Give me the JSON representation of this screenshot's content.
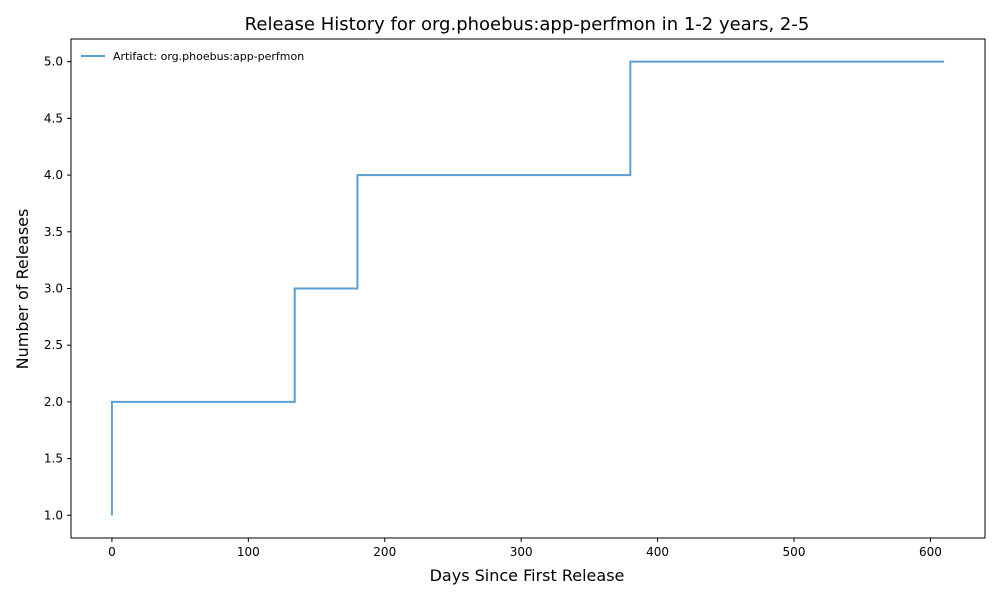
{
  "chart_data": {
    "type": "line",
    "step": "post",
    "title": "Release History for org.phoebus:app-perfmon in 1-2 years, 2-5",
    "xlabel": "Days Since First Release",
    "ylabel": "Number of Releases",
    "xlim": [
      -30,
      640
    ],
    "ylim": [
      0.8,
      5.2
    ],
    "xticks": [
      0,
      100,
      200,
      300,
      400,
      500,
      600
    ],
    "yticks": [
      1.0,
      1.5,
      2.0,
      2.5,
      3.0,
      3.5,
      4.0,
      4.5,
      5.0
    ],
    "xtick_labels": [
      "0",
      "100",
      "200",
      "300",
      "400",
      "500",
      "600"
    ],
    "ytick_labels": [
      "1.0",
      "1.5",
      "2.0",
      "2.5",
      "3.0",
      "3.5",
      "4.0",
      "4.5",
      "5.0"
    ],
    "grid": false,
    "legend_position": "upper-left",
    "series": [
      {
        "name": "Artifact: org.phoebus:app-perfmon",
        "color": "#5a9fd4",
        "x": [
          0,
          0,
          134,
          180,
          380,
          610
        ],
        "y": [
          1,
          2,
          3,
          4,
          5,
          5
        ]
      }
    ]
  }
}
